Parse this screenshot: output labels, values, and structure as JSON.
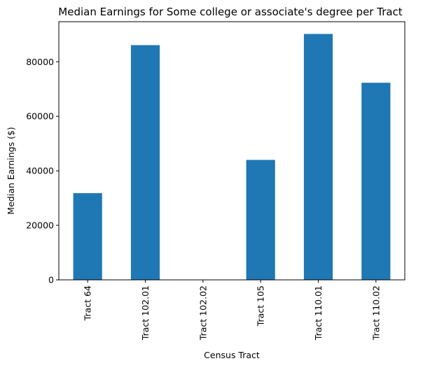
{
  "chart_data": {
    "type": "bar",
    "title": "Median Earnings for Some college or associate's degree per Tract",
    "xlabel": "Census Tract",
    "ylabel": "Median Earnings ($)",
    "categories": [
      "Tract 64",
      "Tract 102.01",
      "Tract 102.02",
      "Tract 105",
      "Tract 110.01",
      "Tract 110.02"
    ],
    "values": [
      31800,
      86100,
      0,
      44000,
      90200,
      72300
    ],
    "ylim": [
      0,
      94700
    ],
    "yticks": [
      0,
      20000,
      40000,
      60000,
      80000
    ],
    "grid": false,
    "colors": {
      "bar": "#1f77b4",
      "axis": "#000000"
    }
  }
}
